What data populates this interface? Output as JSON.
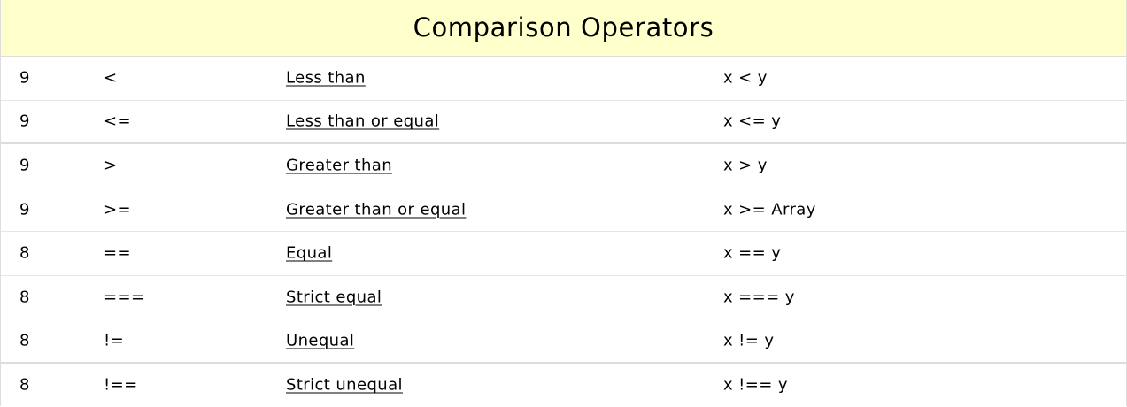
{
  "table": {
    "title": "Comparison Operators",
    "rows": [
      {
        "precedence": "9",
        "operator": "<",
        "description": "Less than",
        "example": "x < y"
      },
      {
        "precedence": "9",
        "operator": "<=",
        "description": "Less than or equal",
        "example": "x <= y"
      },
      {
        "precedence": "9",
        "operator": ">",
        "description": "Greater than",
        "example": "x > y"
      },
      {
        "precedence": "9",
        "operator": ">=",
        "description": "Greater than or equal",
        "example": "x >= Array"
      },
      {
        "precedence": "8",
        "operator": "==",
        "description": "Equal",
        "example": "x == y"
      },
      {
        "precedence": "8",
        "operator": "===",
        "description": "Strict equal",
        "example": "x === y"
      },
      {
        "precedence": "8",
        "operator": "!=",
        "description": "Unequal",
        "example": "x != y"
      },
      {
        "precedence": "8",
        "operator": "!==",
        "description": "Strict unequal",
        "example": "x !== y"
      }
    ]
  },
  "colors": {
    "header_background": "#ffffcc",
    "row_divider": "#e5e5e5",
    "text": "#000000"
  }
}
